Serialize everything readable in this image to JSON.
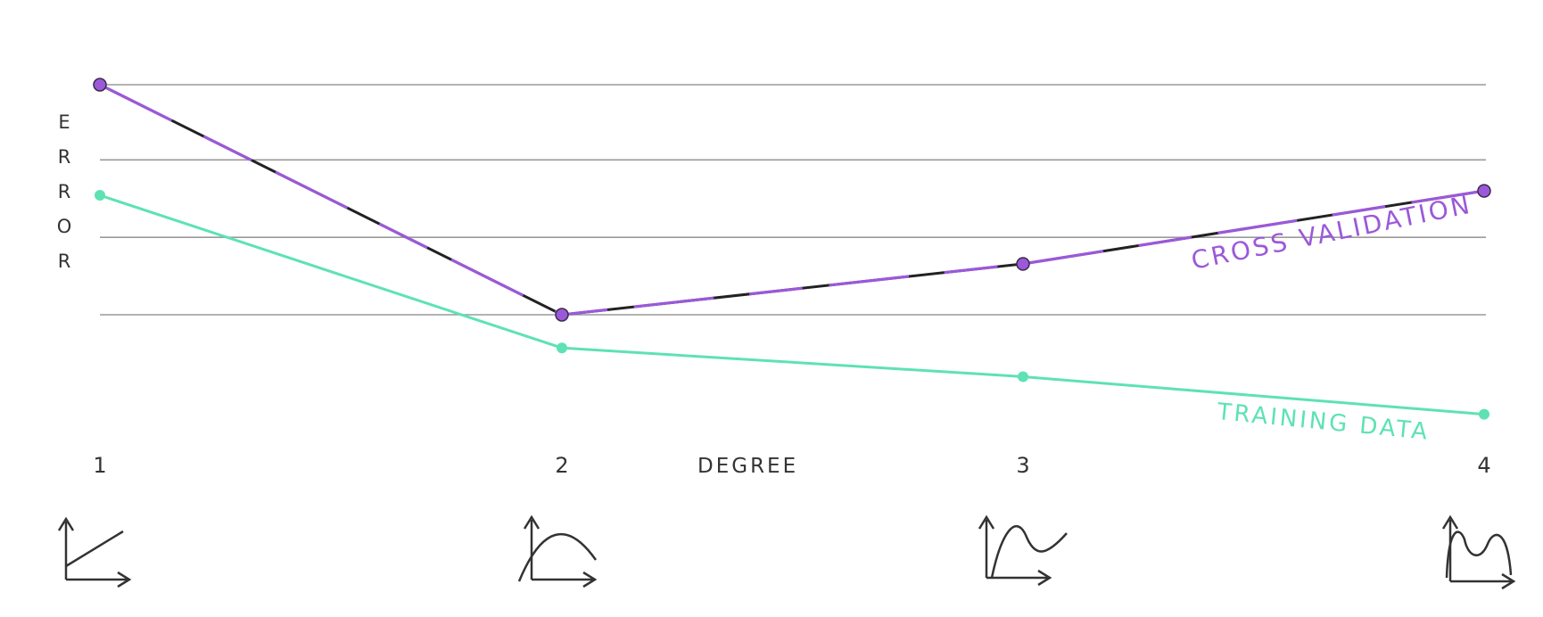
{
  "chart_data": {
    "type": "line",
    "xlabel": "DEGREE",
    "ylabel": "ERROR",
    "categories": [
      "1",
      "2",
      "3",
      "4"
    ],
    "ylim": [
      0,
      10
    ],
    "grid": true,
    "series": [
      {
        "name": "CROSS VALIDATION",
        "values": [
          9.1,
          3.9,
          5.05,
          6.7
        ],
        "color": "#9b59d9",
        "label_placement": "along the line, near x=4"
      },
      {
        "name": "TRAINING DATA",
        "values": [
          6.6,
          3.15,
          2.5,
          1.65
        ],
        "color": "#5ee2b3",
        "label_placement": "below the line, near x=4"
      }
    ],
    "grid_values": [
      9.1,
      7.4,
      5.65,
      3.9
    ],
    "icons": [
      "linear-curve-icon",
      "parabola-curve-icon",
      "cubic-curve-icon",
      "quartic-curve-icon"
    ]
  },
  "colors": {
    "axis_text": "#333333",
    "grid": "#9a9a9a",
    "cv": "#9b59d9",
    "train": "#5ee2b3",
    "overlay": "#222222"
  }
}
